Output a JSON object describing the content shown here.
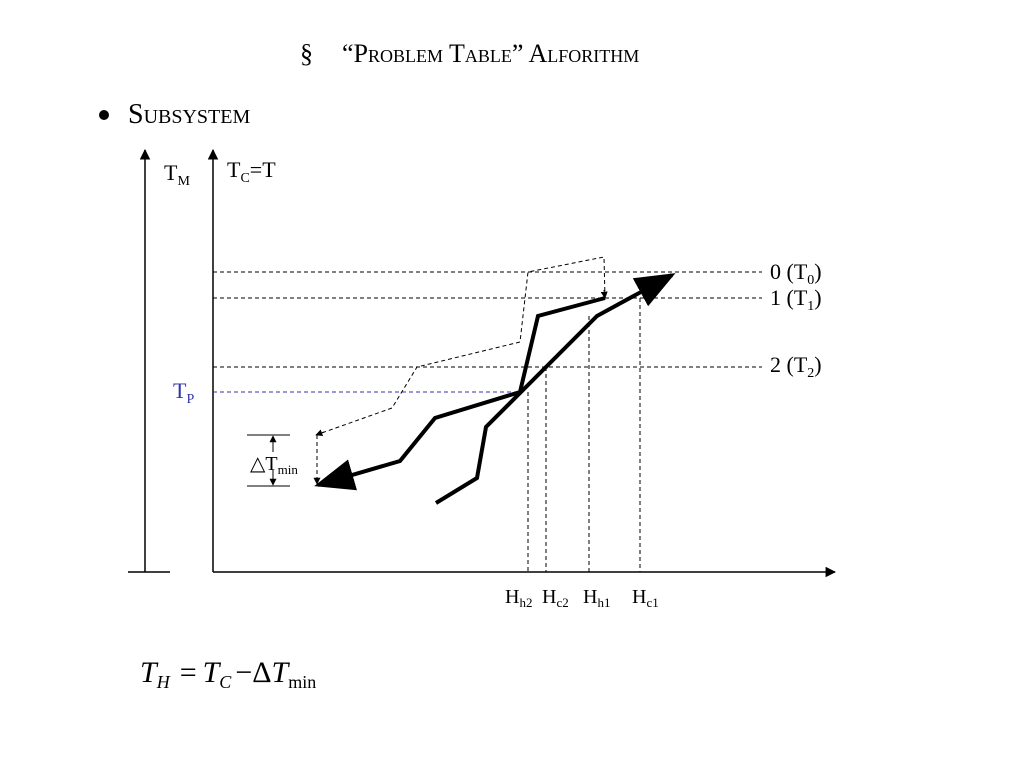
{
  "header": {
    "marker": "§",
    "title": "“Problem Table” Alforithm"
  },
  "bullet": {
    "text": "Subsystem"
  },
  "diagram": {
    "axis_labels": {
      "tm": {
        "base": "T",
        "sub": "M"
      },
      "tc": {
        "base": "T",
        "sub": "C",
        "suffix": "=T"
      }
    },
    "levels": [
      {
        "prefix": "0 (T",
        "sub": "0",
        "suffix": ")"
      },
      {
        "prefix": "1 (T",
        "sub": "1",
        "suffix": ")"
      },
      {
        "prefix": "2 (T",
        "sub": "2",
        "suffix": ")"
      }
    ],
    "tp": {
      "base": "T",
      "sub": "P"
    },
    "dtmin": {
      "base": "△T",
      "sub": "min"
    },
    "h_labels": [
      {
        "base": "H",
        "sub": "h2"
      },
      {
        "base": "H",
        "sub": "c2"
      },
      {
        "base": "H",
        "sub": "h1"
      },
      {
        "base": "H",
        "sub": "c1"
      }
    ]
  },
  "formula": {
    "lhs": {
      "base": "T",
      "sub": "H"
    },
    "eq": "=",
    "rhs1": {
      "base": "T",
      "sub": "C"
    },
    "op": "−Δ",
    "rhs2": {
      "base": "T",
      "sub": "min"
    }
  }
}
